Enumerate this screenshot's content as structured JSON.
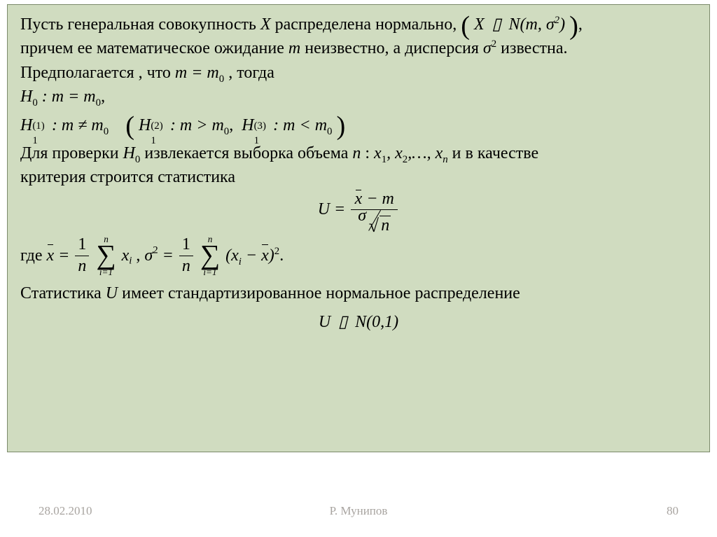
{
  "colors": {
    "page_bg": "#ffffff",
    "box_bg": "#d0dcc0",
    "box_border": "#7b8a6a",
    "text": "#000000",
    "footer_text": "#a8a4a0"
  },
  "typography": {
    "body_font": "Times New Roman",
    "body_size_pt": 18,
    "footer_size_pt": 13
  },
  "text": {
    "p1a": "Пусть генеральная совокупность ",
    "p1_X": "X",
    "p1b": " распределена нормально, ",
    "dist_expr": "X  ▯  N(m, σ",
    "dist_sup": "2",
    "dist_close": ")",
    "p2a": "причем ее математическое ожидание ",
    "p2_m": "m",
    "p2b": "  неизвестно, а дисперсия ",
    "sigma2": "σ",
    "sigma2_sup": "2",
    "p2c": " известна.",
    "p3a": "Предполагается , что ",
    "p3_eq": "m = m",
    "p3_sub": "0",
    "p3b": " , тогда",
    "H0": "H",
    "H0_sub": "0",
    "H0_body": " : m = m",
    "H0_body_sub": "0",
    "comma": ",",
    "H1": "H",
    "H1_sub": "1",
    "H1_sup1": "(1)",
    "H1_body": " : m ≠ m",
    "H1_body_sub": "0",
    "H1_sup2": "(2)",
    "H1_body2": " : m > m",
    "H1_sup3": "(3)",
    "H1_body3": " : m < m",
    "p4a": "Для проверки ",
    "p4_H0": "H",
    "p4_H0_sub": "0",
    "p4b": "  извлекается выборка объема ",
    "p4_n": "n",
    "p4c": ":  ",
    "sample": "x",
    "sample_sub1": "1",
    "sample_sep": ", x",
    "sample_sub2": "2",
    "sample_sep2": ",…, x",
    "sample_subn": "n",
    "p4d": "  и в качестве",
    "p5": "критерия строится статистика",
    "U_eq_left": "U =",
    "U_num_a": "x",
    "U_num_b": " − m",
    "U_den_sigma": "σ",
    "U_den_n": "n",
    "where": "где  ",
    "xbar_eq": " =",
    "one": "1",
    "n": "n",
    "sum_top": "n",
    "sum_bot": "i=1",
    "xi": "x",
    "xi_sub": "i",
    "sep": ",   ",
    "sig2_eq": " =",
    "diff_a": "(x",
    "diff_b": " − ",
    "diff_c": ")",
    "sq": "2",
    "period": ".",
    "p6a": "Статистика ",
    "p6_U": "U",
    "p6b": "  имеет стандартизированное нормальное распределение",
    "U_dist": "U  ▯  N(0,1)"
  },
  "footer": {
    "date": "28.02.2010",
    "author": "Р. Мунипов",
    "page": "80"
  }
}
